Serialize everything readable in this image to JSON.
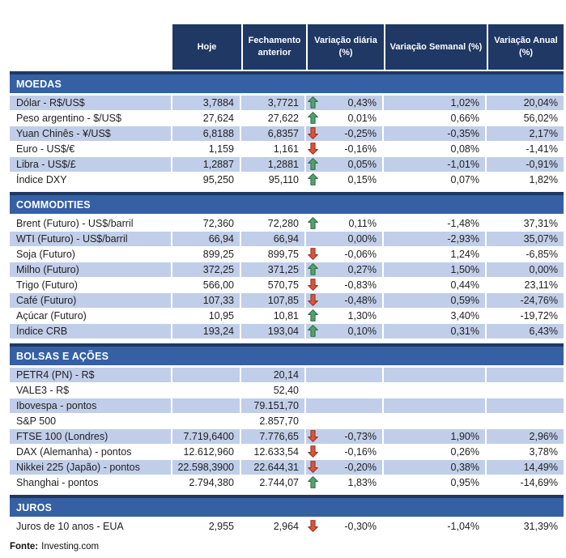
{
  "colors": {
    "header_bg": "#1F3864",
    "band_bg": "#3560A4",
    "row_shaded": "#C1CEE9",
    "arrow_up_fill": "#55A06C",
    "arrow_up_border": "#2F7048",
    "arrow_down_fill": "#D2573C",
    "arrow_down_border": "#9E3421"
  },
  "chart_data": {
    "type": "table",
    "columns": [
      "Hoje",
      "Fechamento anterior",
      "Variação diária (%)",
      "Variação Semanal (%)",
      "Variação Anual (%)"
    ],
    "sections": [
      {
        "title": "MOEDAS",
        "first_row_shaded": true,
        "rows": [
          {
            "label": "Dólar - R$/US$",
            "hoje": "3,7884",
            "fechamento": "3,7721",
            "arrow": "up",
            "diaria": "0,43%",
            "semanal": "1,02%",
            "anual": "20,04%"
          },
          {
            "label": "Peso argentino - $/US$",
            "hoje": "27,624",
            "fechamento": "27,622",
            "arrow": "up",
            "diaria": "0,01%",
            "semanal": "0,66%",
            "anual": "56,02%"
          },
          {
            "label": "Yuan Chinês - ¥/US$",
            "hoje": "6,8188",
            "fechamento": "6,8357",
            "arrow": "down",
            "diaria": "-0,25%",
            "semanal": "-0,35%",
            "anual": "2,17%"
          },
          {
            "label": "Euro - US$/€",
            "hoje": "1,159",
            "fechamento": "1,161",
            "arrow": "down",
            "diaria": "-0,16%",
            "semanal": "0,08%",
            "anual": "-1,41%"
          },
          {
            "label": "Libra - US$/£",
            "hoje": "1,2887",
            "fechamento": "1,2881",
            "arrow": "up",
            "diaria": "0,05%",
            "semanal": "-1,01%",
            "anual": "-0,91%"
          },
          {
            "label": "Índice DXY",
            "hoje": "95,250",
            "fechamento": "95,110",
            "arrow": "up",
            "diaria": "0,15%",
            "semanal": "0,07%",
            "anual": "1,82%"
          }
        ]
      },
      {
        "title": "COMMODITIES",
        "first_row_shaded": false,
        "rows": [
          {
            "label": "Brent (Futuro) - US$/barril",
            "hoje": "72,360",
            "fechamento": "72,280",
            "arrow": "up",
            "diaria": "0,11%",
            "semanal": "-1,48%",
            "anual": "37,31%"
          },
          {
            "label": "WTI (Futuro) - US$/barril",
            "hoje": "66,94",
            "fechamento": "66,94",
            "arrow": "",
            "diaria": "0,00%",
            "semanal": "-2,93%",
            "anual": "35,07%"
          },
          {
            "label": "Soja (Futuro)",
            "hoje": "899,25",
            "fechamento": "899,75",
            "arrow": "down",
            "diaria": "-0,06%",
            "semanal": "1,24%",
            "anual": "-6,85%"
          },
          {
            "label": "Milho (Futuro)",
            "hoje": "372,25",
            "fechamento": "371,25",
            "arrow": "up",
            "diaria": "0,27%",
            "semanal": "1,50%",
            "anual": "0,00%"
          },
          {
            "label": "Trigo (Futuro)",
            "hoje": "566,00",
            "fechamento": "570,75",
            "arrow": "down",
            "diaria": "-0,83%",
            "semanal": "0,44%",
            "anual": "23,11%"
          },
          {
            "label": "Café (Futuro)",
            "hoje": "107,33",
            "fechamento": "107,85",
            "arrow": "down",
            "diaria": "-0,48%",
            "semanal": "0,59%",
            "anual": "-24,76%"
          },
          {
            "label": "Açúcar (Futuro)",
            "hoje": "10,95",
            "fechamento": "10,81",
            "arrow": "up",
            "diaria": "1,30%",
            "semanal": "3,40%",
            "anual": "-19,72%"
          },
          {
            "label": "Índice CRB",
            "hoje": "193,24",
            "fechamento": "193,04",
            "arrow": "up",
            "diaria": "0,10%",
            "semanal": "0,31%",
            "anual": "6,43%"
          }
        ]
      },
      {
        "title": "BOLSAS E AÇÕES",
        "first_row_shaded": true,
        "rows": [
          {
            "label": "PETR4 (PN) - R$",
            "hoje": "",
            "fechamento": "20,14",
            "arrow": "",
            "diaria": "",
            "semanal": "",
            "anual": ""
          },
          {
            "label": "VALE3 - R$",
            "hoje": "",
            "fechamento": "52,40",
            "arrow": "",
            "diaria": "",
            "semanal": "",
            "anual": ""
          },
          {
            "label": "Ibovespa - pontos",
            "hoje": "",
            "fechamento": "79.151,70",
            "arrow": "",
            "diaria": "",
            "semanal": "",
            "anual": ""
          },
          {
            "label": "S&P 500",
            "hoje": "",
            "fechamento": "2.857,70",
            "arrow": "",
            "diaria": "",
            "semanal": "",
            "anual": ""
          },
          {
            "label": "FTSE 100 (Londres)",
            "hoje": "7.719,6400",
            "fechamento": "7.776,65",
            "arrow": "down",
            "diaria": "-0,73%",
            "semanal": "1,90%",
            "anual": "2,96%"
          },
          {
            "label": "DAX (Alemanha) - pontos",
            "hoje": "12.612,960",
            "fechamento": "12.633,54",
            "arrow": "down",
            "diaria": "-0,16%",
            "semanal": "0,26%",
            "anual": "3,78%"
          },
          {
            "label": "Nikkei 225 (Japão) - pontos",
            "hoje": "22.598,3900",
            "fechamento": "22.644,31",
            "arrow": "down",
            "diaria": "-0,20%",
            "semanal": "0,38%",
            "anual": "14,49%"
          },
          {
            "label": "Shanghai - pontos",
            "hoje": "2.794,380",
            "fechamento": "2.744,07",
            "arrow": "up",
            "diaria": "1,83%",
            "semanal": "0,95%",
            "anual": "-14,69%"
          }
        ]
      },
      {
        "title": "JUROS",
        "first_row_shaded": false,
        "rows": [
          {
            "label": "Juros de 10 anos - EUA",
            "hoje": "2,955",
            "fechamento": "2,964",
            "arrow": "down",
            "diaria": "-0,30%",
            "semanal": "-1,04%",
            "anual": "31,39%"
          }
        ]
      }
    ]
  },
  "footer": {
    "source_label": "Fonte:",
    "source_value": "Investing.com"
  }
}
